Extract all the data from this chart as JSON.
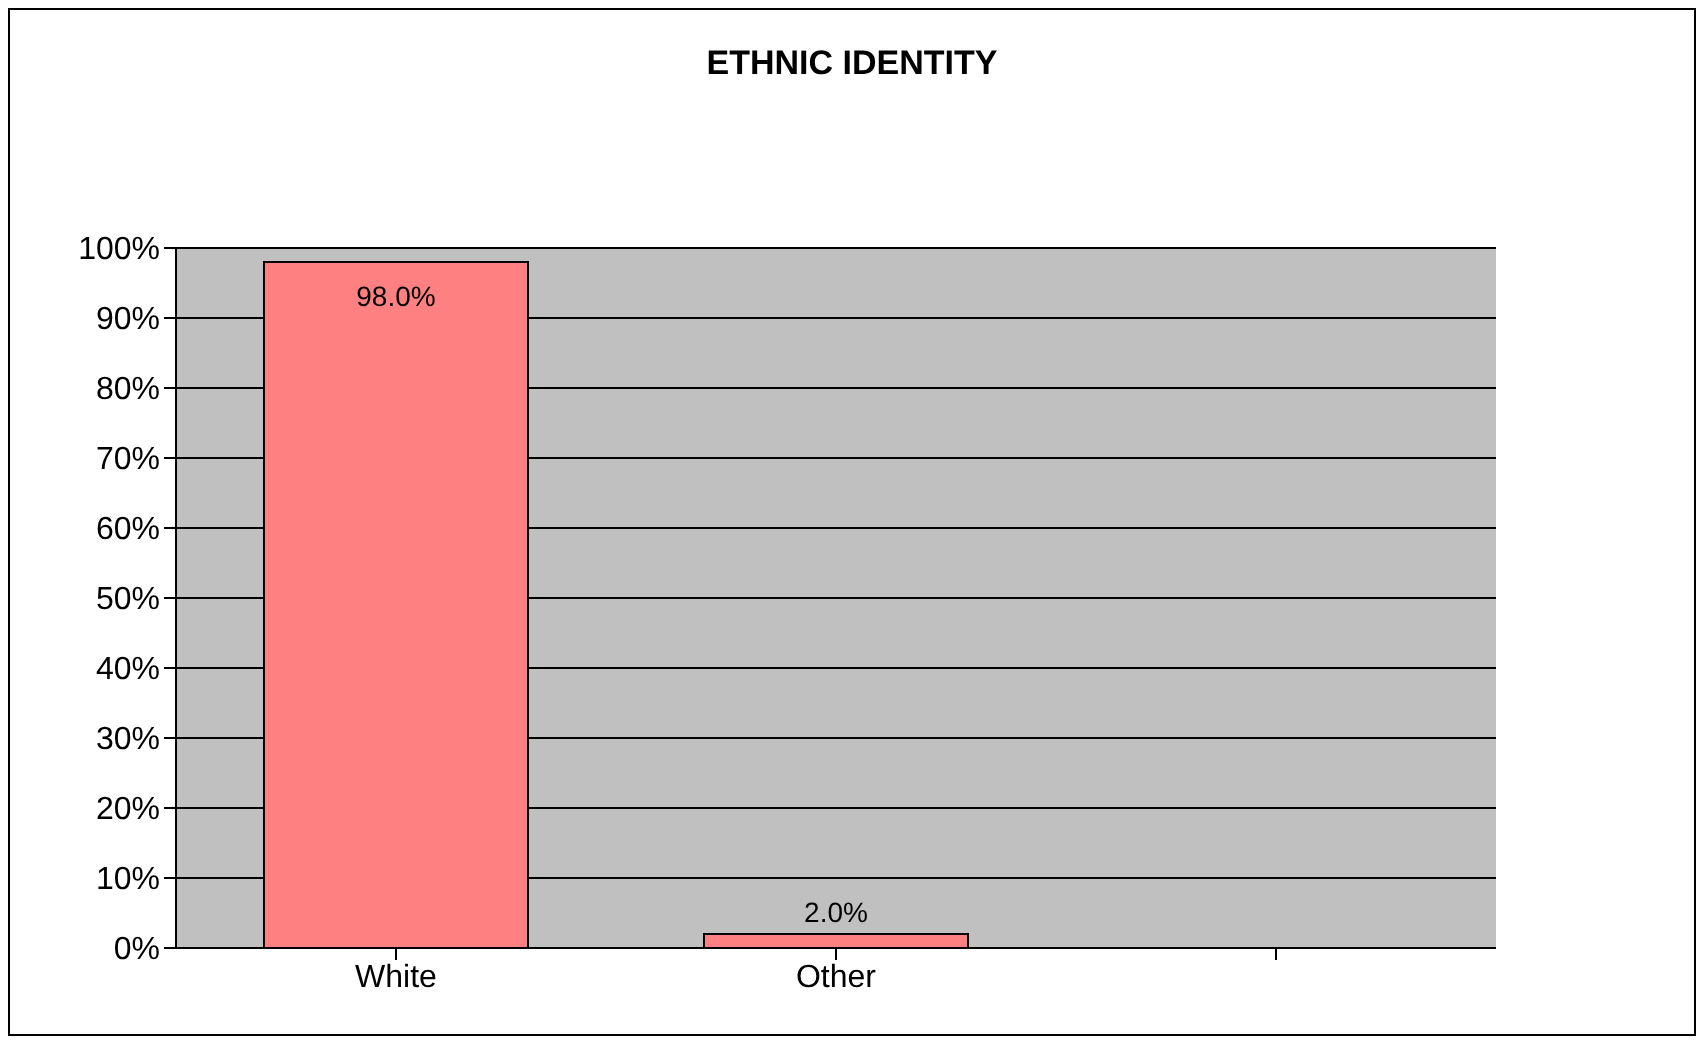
{
  "chart_data": {
    "type": "bar",
    "title": "ETHNIC IDENTITY",
    "categories": [
      "White",
      "Other",
      null
    ],
    "values": [
      98,
      2,
      null
    ],
    "color": "#ff8080",
    "value_labels": [
      "98.0%",
      "2.0%",
      null
    ],
    "ylim": [
      0,
      100
    ],
    "yticks": [
      {
        "value": 0,
        "label": "0%"
      },
      {
        "value": 10,
        "label": "10%"
      },
      {
        "value": 20,
        "label": "20%"
      },
      {
        "value": 30,
        "label": "30%"
      },
      {
        "value": 40,
        "label": "40%"
      },
      {
        "value": 50,
        "label": "50%"
      },
      {
        "value": 60,
        "label": "60%"
      },
      {
        "value": 70,
        "label": "70%"
      },
      {
        "value": 80,
        "label": "80%"
      },
      {
        "value": 90,
        "label": "90%"
      },
      {
        "value": 100,
        "label": "100%"
      }
    ],
    "grid": "y"
  }
}
